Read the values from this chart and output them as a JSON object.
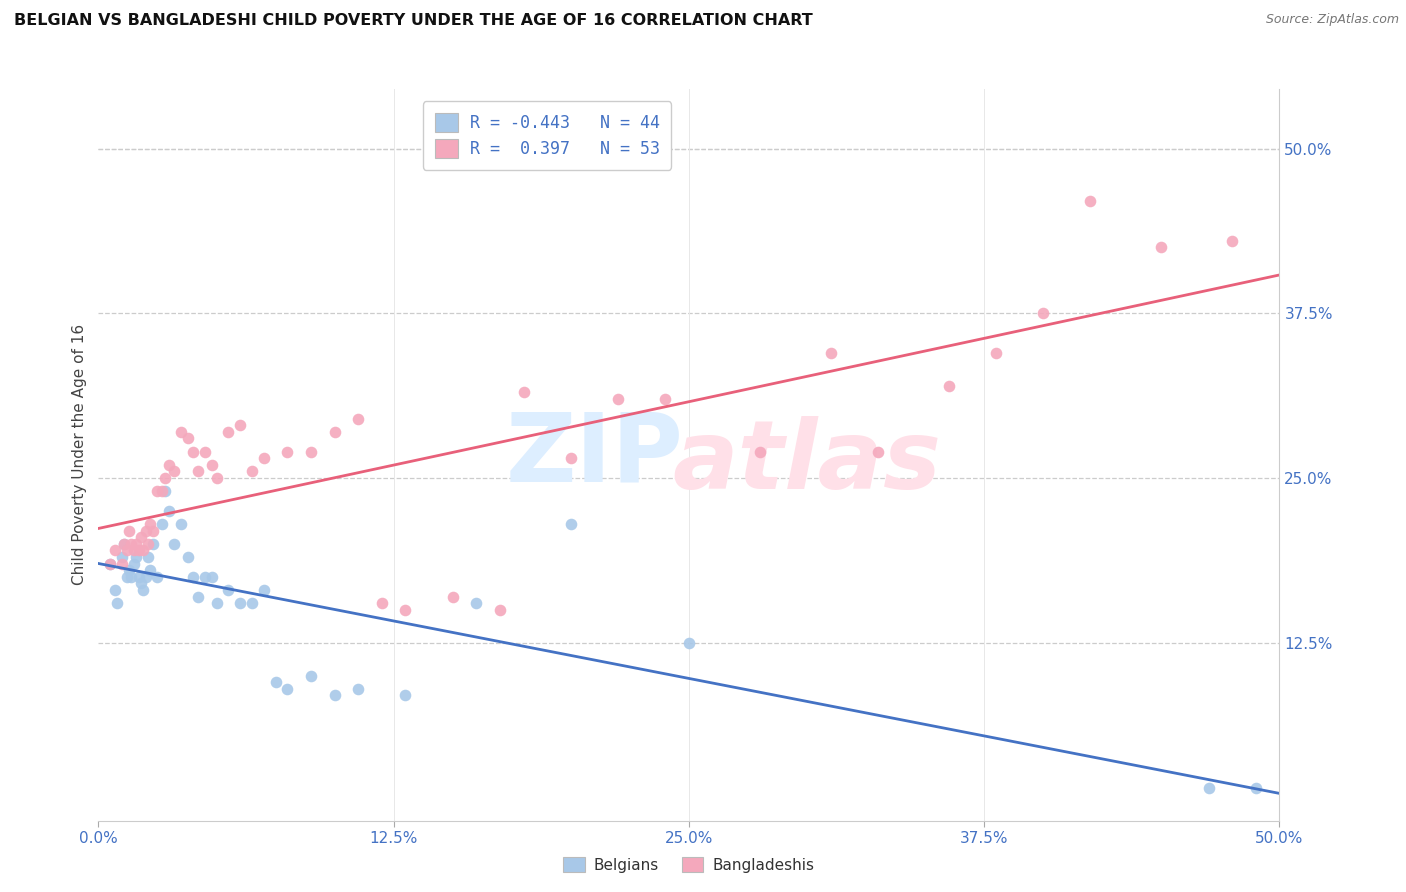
{
  "title": "BELGIAN VS BANGLADESHI CHILD POVERTY UNDER THE AGE OF 16 CORRELATION CHART",
  "source": "Source: ZipAtlas.com",
  "ylabel": "Child Poverty Under the Age of 16",
  "xlim": [
    0.0,
    0.5
  ],
  "ylim": [
    -0.01,
    0.545
  ],
  "xtick_values": [
    0.0,
    0.125,
    0.25,
    0.375,
    0.5
  ],
  "xtick_labels": [
    "0.0%",
    "12.5%",
    "25.0%",
    "37.5%",
    "50.0%"
  ],
  "ytick_values": [
    0.125,
    0.25,
    0.375,
    0.5
  ],
  "ytick_labels": [
    "12.5%",
    "25.0%",
    "37.5%",
    "50.0%"
  ],
  "color_belgians": "#a8c8e8",
  "color_bangladeshis": "#f4a8bc",
  "color_line_belgians": "#4472c4",
  "color_line_bangladeshis": "#e8607a",
  "legend_label1": "Belgians",
  "legend_label2": "Bangladeshis",
  "belgians_x": [
    0.005,
    0.007,
    0.008,
    0.01,
    0.011,
    0.012,
    0.013,
    0.014,
    0.015,
    0.016,
    0.017,
    0.018,
    0.019,
    0.02,
    0.021,
    0.022,
    0.023,
    0.025,
    0.027,
    0.028,
    0.03,
    0.032,
    0.035,
    0.038,
    0.04,
    0.042,
    0.045,
    0.048,
    0.05,
    0.055,
    0.06,
    0.065,
    0.07,
    0.075,
    0.08,
    0.09,
    0.1,
    0.11,
    0.13,
    0.16,
    0.2,
    0.25,
    0.47,
    0.49
  ],
  "belgians_y": [
    0.185,
    0.165,
    0.155,
    0.19,
    0.2,
    0.175,
    0.18,
    0.175,
    0.185,
    0.19,
    0.175,
    0.17,
    0.165,
    0.175,
    0.19,
    0.18,
    0.2,
    0.175,
    0.215,
    0.24,
    0.225,
    0.2,
    0.215,
    0.19,
    0.175,
    0.16,
    0.175,
    0.175,
    0.155,
    0.165,
    0.155,
    0.155,
    0.165,
    0.095,
    0.09,
    0.1,
    0.085,
    0.09,
    0.085,
    0.155,
    0.215,
    0.125,
    0.015,
    0.015
  ],
  "bangladeshis_x": [
    0.005,
    0.007,
    0.01,
    0.011,
    0.012,
    0.013,
    0.014,
    0.015,
    0.016,
    0.017,
    0.018,
    0.019,
    0.02,
    0.021,
    0.022,
    0.023,
    0.025,
    0.027,
    0.028,
    0.03,
    0.032,
    0.035,
    0.038,
    0.04,
    0.042,
    0.045,
    0.048,
    0.05,
    0.055,
    0.06,
    0.065,
    0.07,
    0.08,
    0.09,
    0.1,
    0.11,
    0.12,
    0.13,
    0.15,
    0.17,
    0.18,
    0.2,
    0.22,
    0.24,
    0.28,
    0.31,
    0.33,
    0.36,
    0.38,
    0.4,
    0.42,
    0.45,
    0.48
  ],
  "bangladeshis_y": [
    0.185,
    0.195,
    0.185,
    0.2,
    0.195,
    0.21,
    0.2,
    0.195,
    0.2,
    0.195,
    0.205,
    0.195,
    0.21,
    0.2,
    0.215,
    0.21,
    0.24,
    0.24,
    0.25,
    0.26,
    0.255,
    0.285,
    0.28,
    0.27,
    0.255,
    0.27,
    0.26,
    0.25,
    0.285,
    0.29,
    0.255,
    0.265,
    0.27,
    0.27,
    0.285,
    0.295,
    0.155,
    0.15,
    0.16,
    0.15,
    0.315,
    0.265,
    0.31,
    0.31,
    0.27,
    0.345,
    0.27,
    0.32,
    0.345,
    0.375,
    0.46,
    0.425,
    0.43
  ]
}
